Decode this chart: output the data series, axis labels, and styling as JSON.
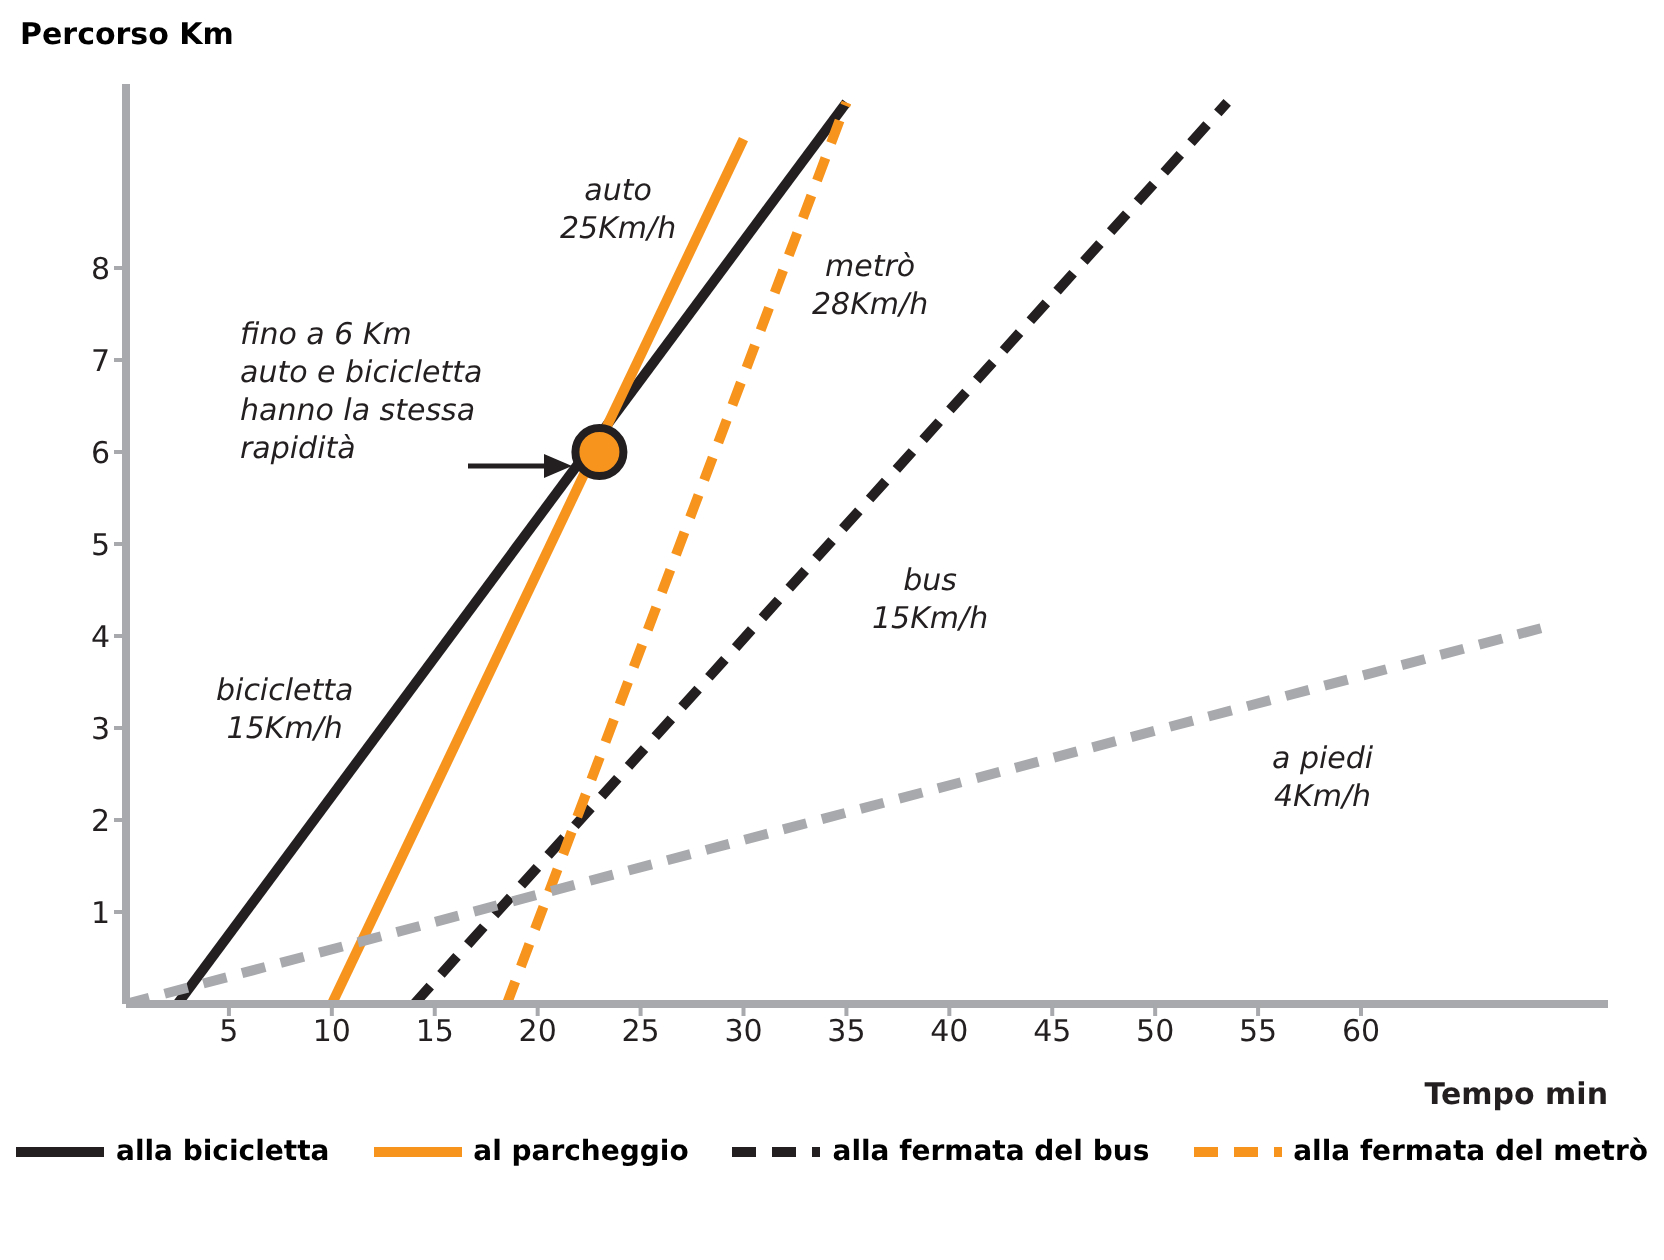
{
  "chart_data": {
    "type": "line",
    "xlabel": "Tempo min",
    "ylabel": "Percorso Km",
    "xlim": [
      0,
      72
    ],
    "ylim": [
      0,
      10
    ],
    "xticks": [
      5,
      10,
      15,
      20,
      25,
      30,
      35,
      40,
      45,
      50,
      55,
      60
    ],
    "yticks": [
      1,
      2,
      3,
      4,
      5,
      6,
      7,
      8
    ],
    "grid": false,
    "legend": "bottom",
    "marker": "none",
    "series": [
      {
        "name": "alla bicicletta",
        "color": "#231f20",
        "line_style": "solid",
        "x": [
          2.5,
          35
        ],
        "values": [
          0,
          9.8
        ]
      },
      {
        "name": "al parcheggio",
        "color": "#f7941d",
        "line_style": "solid",
        "x": [
          10,
          30
        ],
        "values": [
          0,
          9.4
        ]
      },
      {
        "name": "alla fermata del bus",
        "color": "#231f20",
        "line_style": "dashed",
        "x": [
          14,
          53.5
        ],
        "values": [
          0,
          9.8
        ]
      },
      {
        "name": "alla fermata del metrò",
        "color": "#f7941d",
        "line_style": "dashed",
        "x": [
          18.5,
          35
        ],
        "values": [
          0,
          9.8
        ]
      },
      {
        "color": "#a7a9ac",
        "line_style": "dashed",
        "x": [
          0,
          69
        ],
        "values": [
          0,
          4.1
        ]
      },
      {
        "type": "scatter",
        "color": "#f7941d",
        "marker": "circle",
        "x": [
          23
        ],
        "values": [
          6
        ]
      }
    ],
    "annotations": [
      "fino a 6 Km\nauto e bicicletta\nhanno la stessa\nrapidità",
      "auto\n25Km/h",
      "metrò\n28Km/h",
      "bus\n15Km/h",
      "bicicletta\n15Km/h",
      "a piedi\n4Km/h"
    ]
  }
}
